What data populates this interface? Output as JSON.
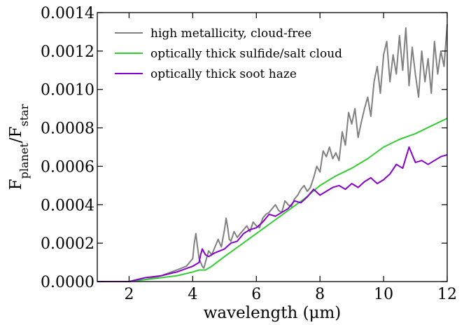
{
  "chart_data": {
    "type": "line",
    "title": "",
    "xlabel": "wavelength (μm)",
    "ylabel": "F_planet/F_star",
    "ylabel_parts": {
      "main": "F",
      "sub1": "planet",
      "slash": "/",
      "main2": "F",
      "sub2": "star"
    },
    "xlim": [
      1,
      12
    ],
    "ylim": [
      0,
      0.0014
    ],
    "xticks": [
      2,
      4,
      6,
      8,
      10,
      12
    ],
    "xtick_labels": [
      "2",
      "4",
      "6",
      "8",
      "10",
      "12"
    ],
    "yticks": [
      0,
      0.0002,
      0.0004,
      0.0006,
      0.0008,
      0.001,
      0.0012,
      0.0014
    ],
    "ytick_labels": [
      "0.0000",
      "0.0002",
      "0.0004",
      "0.0006",
      "0.0008",
      "0.0010",
      "0.0012",
      "0.0014"
    ],
    "grid": false,
    "legend_position": "top-left",
    "series": [
      {
        "name": "high metallicity, cloud-free",
        "color": "#808080",
        "x": [
          1.0,
          2.0,
          2.5,
          3.0,
          3.5,
          3.8,
          4.0,
          4.05,
          4.1,
          4.15,
          4.2,
          4.25,
          4.3,
          4.35,
          4.4,
          4.5,
          4.6,
          4.7,
          4.8,
          4.9,
          5.0,
          5.05,
          5.1,
          5.15,
          5.2,
          5.3,
          5.4,
          5.5,
          5.6,
          5.7,
          5.8,
          5.9,
          6.0,
          6.1,
          6.2,
          6.3,
          6.4,
          6.5,
          6.6,
          6.7,
          6.8,
          6.9,
          7.0,
          7.1,
          7.2,
          7.3,
          7.4,
          7.5,
          7.6,
          7.7,
          7.8,
          7.9,
          8.0,
          8.1,
          8.2,
          8.3,
          8.4,
          8.5,
          8.6,
          8.7,
          8.8,
          8.9,
          9.0,
          9.1,
          9.2,
          9.3,
          9.4,
          9.5,
          9.6,
          9.7,
          9.8,
          9.9,
          10.0,
          10.1,
          10.2,
          10.3,
          10.4,
          10.5,
          10.6,
          10.7,
          10.8,
          10.9,
          11.0,
          11.1,
          11.2,
          11.3,
          11.4,
          11.5,
          11.6,
          11.7,
          11.8,
          11.9,
          12.0
        ],
        "values": [
          0.0,
          0.0,
          1e-05,
          3e-05,
          6e-05,
          8e-05,
          0.00012,
          0.0002,
          0.00025,
          0.00018,
          0.00012,
          0.0001,
          8e-05,
          7e-05,
          0.0001,
          0.00016,
          0.00014,
          0.00018,
          0.00022,
          0.00018,
          0.00027,
          0.00033,
          0.00028,
          0.00022,
          0.00021,
          0.00026,
          0.00023,
          0.00025,
          0.00027,
          0.00029,
          0.00026,
          0.00031,
          0.00029,
          0.00028,
          0.00033,
          0.00035,
          0.00036,
          0.00038,
          0.0004,
          0.00037,
          0.00036,
          0.00042,
          0.0004,
          0.00039,
          0.00043,
          0.00045,
          0.00048,
          0.0005,
          0.00047,
          0.00049,
          0.00054,
          0.0006,
          0.00057,
          0.00068,
          0.00065,
          0.0007,
          0.00064,
          0.00067,
          0.00063,
          0.00078,
          0.00071,
          0.00088,
          0.00082,
          0.0009,
          0.00075,
          0.00083,
          0.0009,
          0.00096,
          0.00086,
          0.00104,
          0.00112,
          0.00098,
          0.00118,
          0.00125,
          0.00104,
          0.00118,
          0.00108,
          0.00128,
          0.0011,
          0.00132,
          0.00102,
          0.00122,
          0.00108,
          0.00096,
          0.0012,
          0.00104,
          0.00116,
          0.00098,
          0.00125,
          0.00108,
          0.0012,
          0.00112,
          0.00134
        ]
      },
      {
        "name": "optically thick sulfide/salt cloud",
        "color": "#33cc33",
        "x": [
          1.0,
          2.0,
          2.5,
          3.0,
          3.5,
          4.0,
          4.2,
          4.4,
          4.6,
          5.0,
          5.5,
          6.0,
          6.5,
          7.0,
          7.5,
          8.0,
          8.5,
          9.0,
          9.5,
          10.0,
          10.5,
          11.0,
          11.5,
          12.0
        ],
        "values": [
          0.0,
          0.0,
          1e-05,
          2e-05,
          3e-05,
          5e-05,
          6e-05,
          6e-05,
          8e-05,
          0.00013,
          0.00019,
          0.00025,
          0.00031,
          0.00037,
          0.00043,
          0.0005,
          0.00055,
          0.00059,
          0.00064,
          0.0007,
          0.00074,
          0.00077,
          0.00081,
          0.00085
        ]
      },
      {
        "name": "optically thick soot haze",
        "color": "#8800cc",
        "x": [
          1.0,
          2.0,
          2.5,
          3.0,
          3.5,
          4.0,
          4.2,
          4.25,
          4.3,
          4.4,
          4.5,
          4.7,
          5.0,
          5.2,
          5.4,
          5.6,
          5.8,
          6.0,
          6.2,
          6.4,
          6.6,
          6.8,
          7.0,
          7.2,
          7.4,
          7.6,
          7.8,
          8.0,
          8.2,
          8.4,
          8.6,
          8.8,
          9.0,
          9.2,
          9.4,
          9.6,
          9.8,
          10.0,
          10.2,
          10.4,
          10.6,
          10.8,
          11.0,
          11.2,
          11.4,
          11.6,
          11.8,
          12.0
        ],
        "values": [
          0.0,
          0.0,
          2e-05,
          3e-05,
          5e-05,
          8e-05,
          0.0001,
          0.00014,
          0.00017,
          0.00014,
          0.00013,
          0.00015,
          0.00017,
          0.0002,
          0.00021,
          0.00025,
          0.00027,
          0.00028,
          0.00031,
          0.00035,
          0.00034,
          0.00036,
          0.00038,
          0.00042,
          0.00041,
          0.00044,
          0.00048,
          0.00045,
          0.00047,
          0.00049,
          0.0005,
          0.00048,
          0.00051,
          0.00049,
          0.00052,
          0.00054,
          0.00051,
          0.00053,
          0.00056,
          0.00061,
          0.00059,
          0.0007,
          0.00062,
          0.00063,
          0.00061,
          0.00063,
          0.00065,
          0.00066
        ]
      }
    ]
  }
}
